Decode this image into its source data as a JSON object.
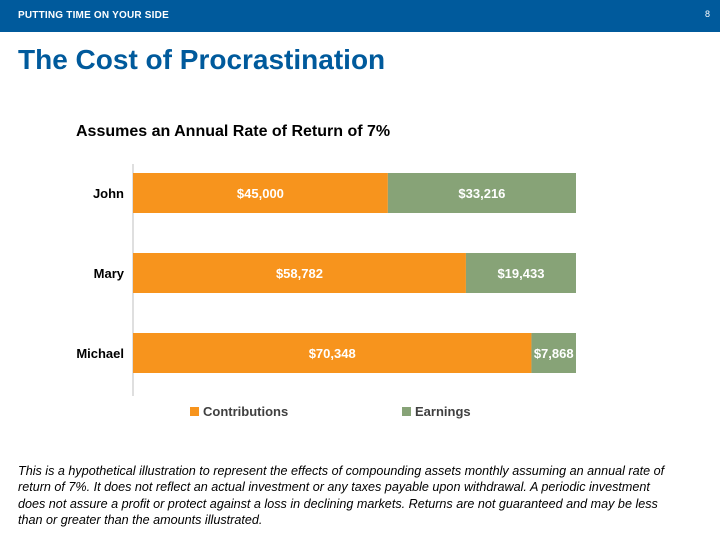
{
  "header": {
    "section_label": "PUTTING TIME ON YOUR SIDE",
    "page_number": "8"
  },
  "page_title": "The Cost of Procrastination",
  "colors": {
    "brand_blue": "#005a9c",
    "contributions": "#f7941d",
    "earnings": "#87a377"
  },
  "chart_data": {
    "type": "bar",
    "orientation": "horizontal",
    "stacked": true,
    "title": "Assumes an Annual Rate of Return of 7%",
    "categories": [
      "John",
      "Mary",
      "Michael"
    ],
    "series": [
      {
        "name": "Contributions",
        "values": [
          45000,
          58782,
          70348
        ],
        "labels": [
          "$45,000",
          "$58,782",
          "$70,348"
        ]
      },
      {
        "name": "Earnings",
        "values": [
          33216,
          19433,
          7868
        ],
        "labels": [
          "$33,216",
          "$19,433",
          "$7,868"
        ]
      }
    ],
    "legend_position": "bottom",
    "xlim": [
      0,
      78216
    ],
    "grid": false
  },
  "disclaimer": "This is a hypothetical illustration to represent the effects of compounding assets monthly assuming an annual rate of return of 7%. It does not reflect an actual investment or any taxes payable upon withdrawal. A periodic investment does not assure a profit or protect against a loss in declining markets. Returns are not guaranteed and may be less than or greater than the amounts illustrated."
}
